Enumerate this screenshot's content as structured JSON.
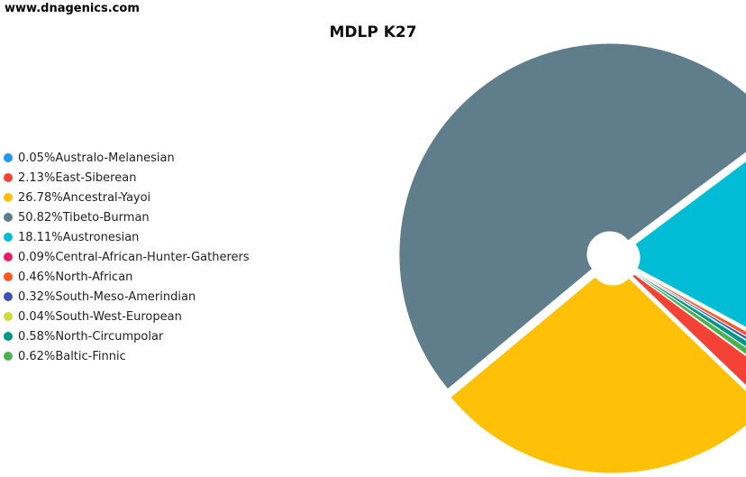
{
  "watermark": "www.dnagenics.com",
  "chart_data": {
    "type": "pie",
    "title": "MDLP K27",
    "legend_position": "left",
    "slices": [
      {
        "label": "Australo-Melanesian",
        "value": 0.05,
        "display": "0.05%",
        "color": "#2196f3"
      },
      {
        "label": "East-Siberean",
        "value": 2.13,
        "display": "2.13%",
        "color": "#f44336"
      },
      {
        "label": "Ancestral-Yayoi",
        "value": 26.78,
        "display": "26.78%",
        "color": "#ffc107"
      },
      {
        "label": "Tibeto-Burman",
        "value": 50.82,
        "display": "50.82%",
        "color": "#607d8b"
      },
      {
        "label": "Austronesian",
        "value": 18.11,
        "display": "18.11%",
        "color": "#00bcd4"
      },
      {
        "label": "Central-African-Hunter-Gatherers",
        "value": 0.09,
        "display": "0.09%",
        "color": "#e91e63"
      },
      {
        "label": "North-African",
        "value": 0.46,
        "display": "0.46%",
        "color": "#ff5722"
      },
      {
        "label": "South-Meso-Amerindian",
        "value": 0.32,
        "display": "0.32%",
        "color": "#3f51b5"
      },
      {
        "label": "South-West-European",
        "value": 0.04,
        "display": "0.04%",
        "color": "#cddc39"
      },
      {
        "label": "North-Circumpolar",
        "value": 0.58,
        "display": "0.58%",
        "color": "#009688"
      },
      {
        "label": "Baltic-Finnic",
        "value": 0.62,
        "display": "0.62%",
        "color": "#4caf50"
      }
    ]
  }
}
